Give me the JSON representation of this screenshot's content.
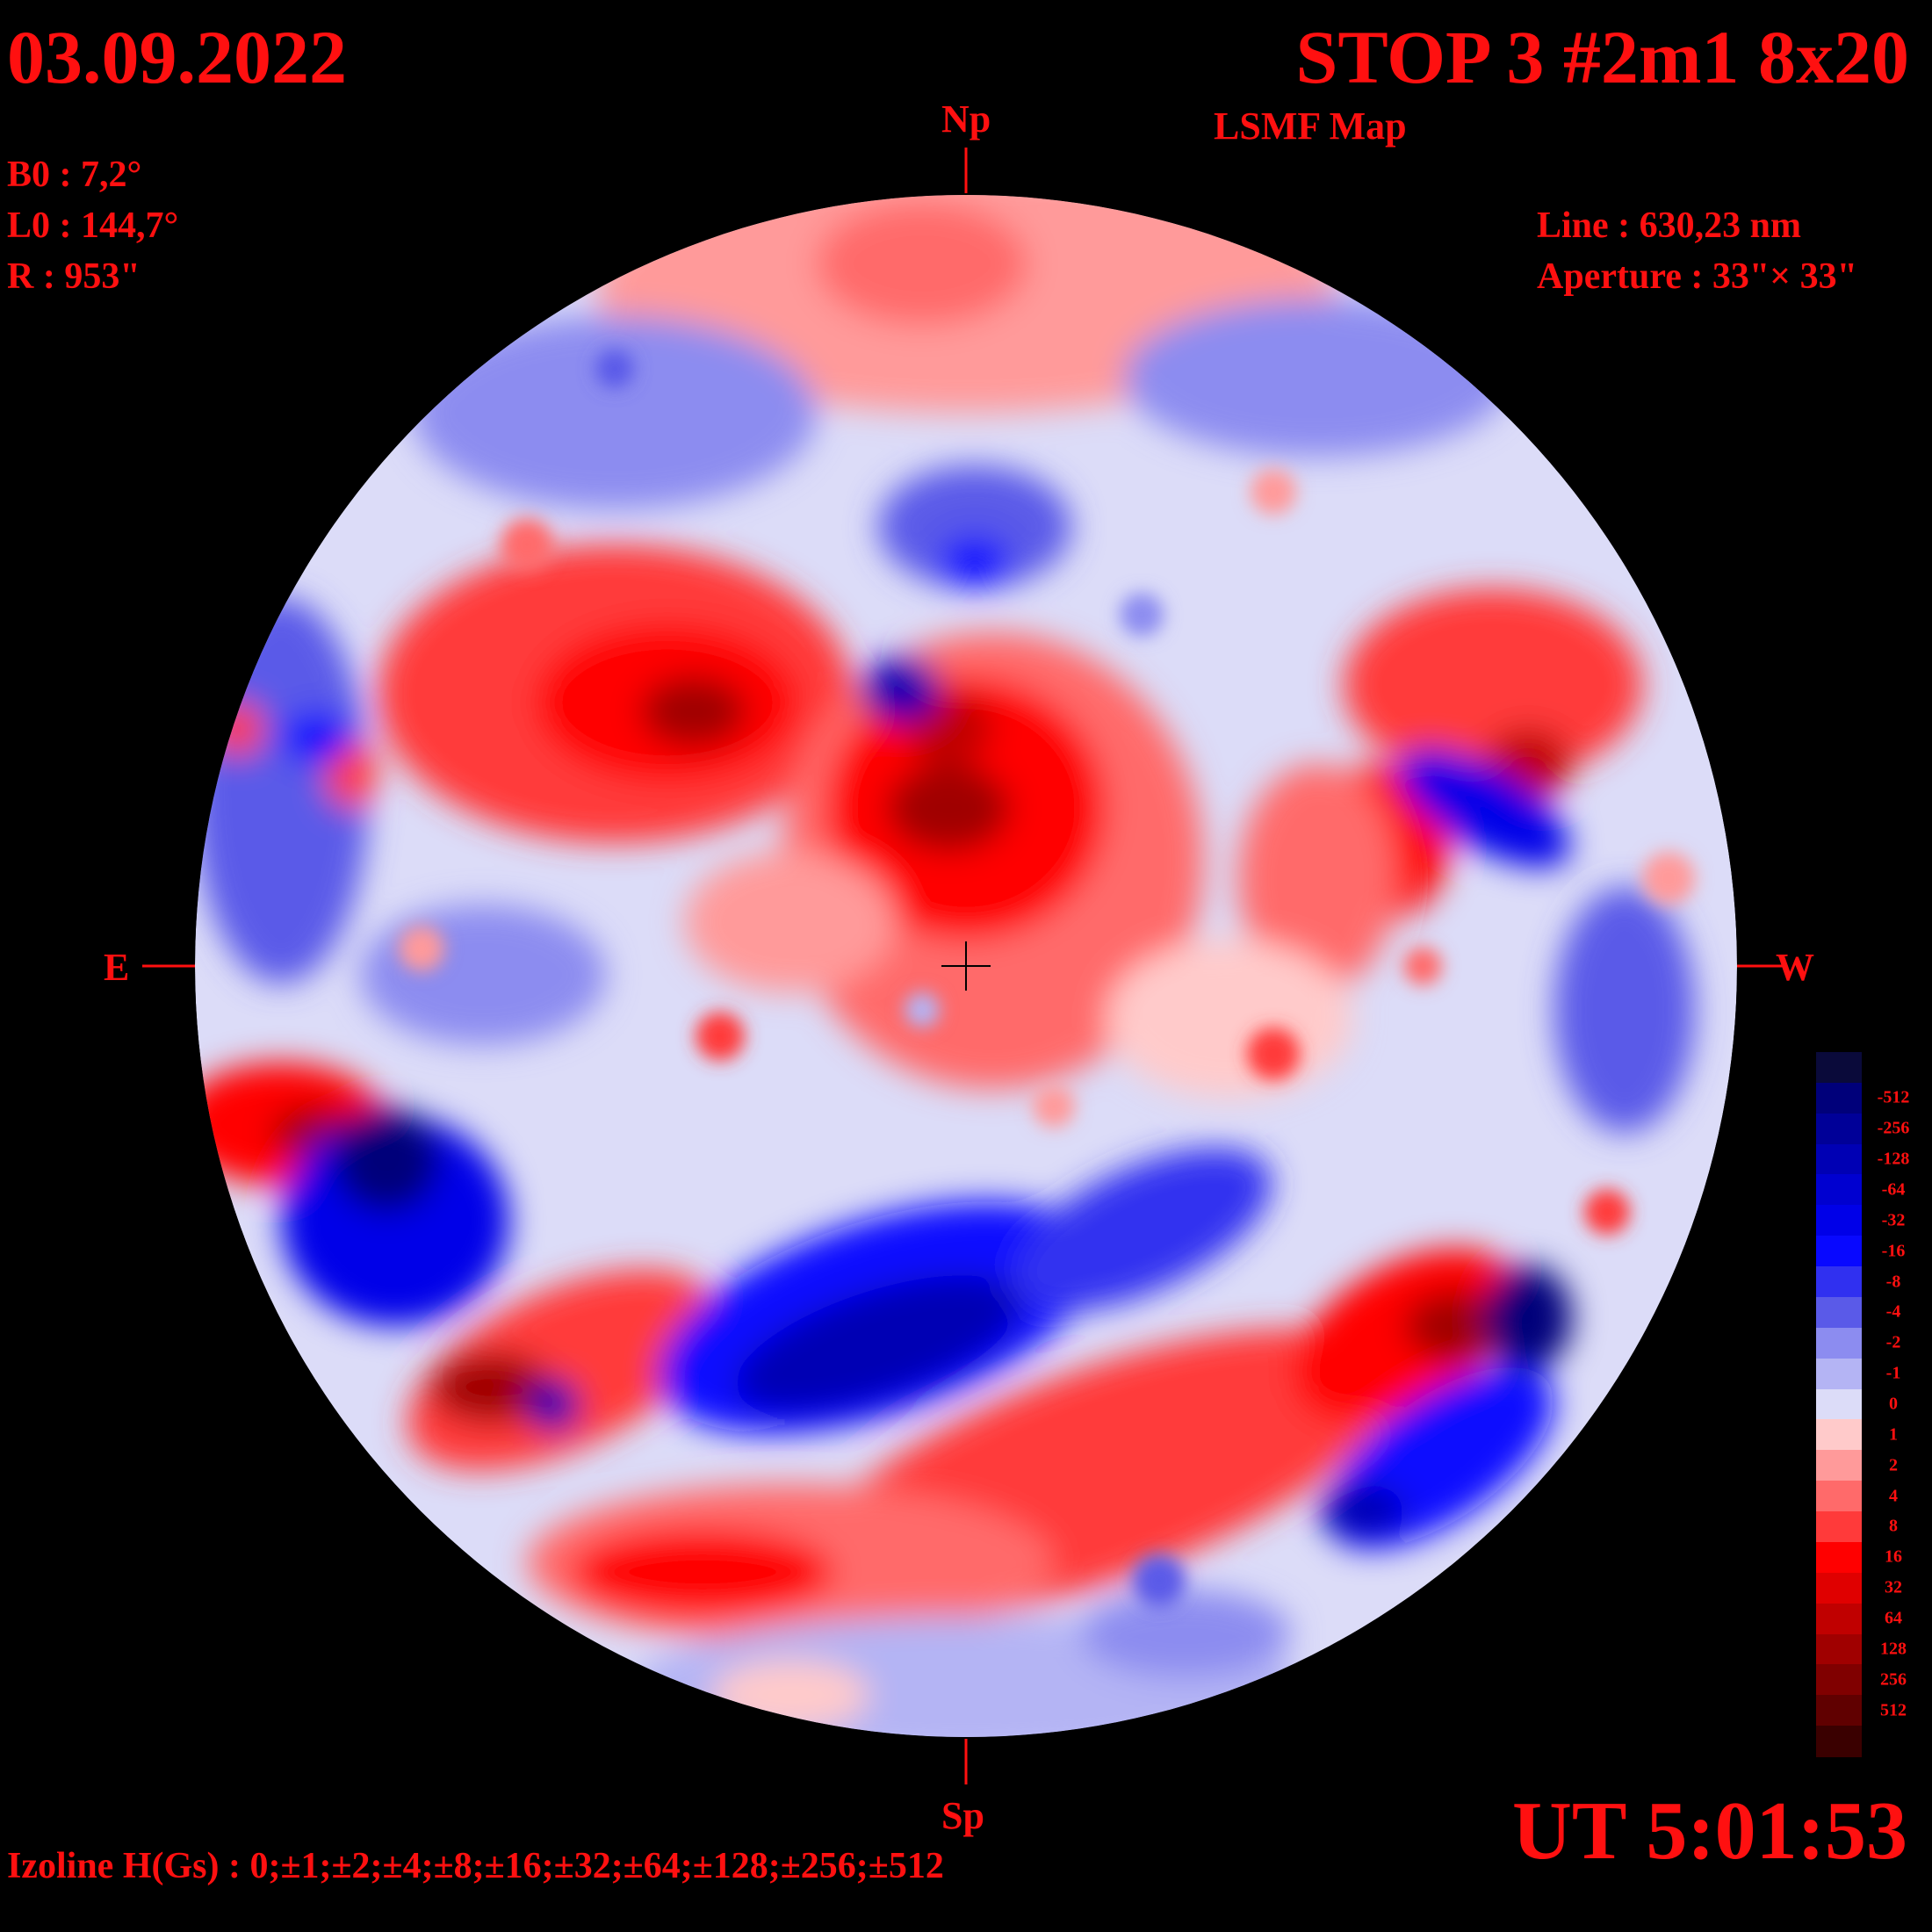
{
  "header": {
    "date": "03.09.2022",
    "title": "STOP 3 #2m1 8x20",
    "subtitle": "LSMF  Map"
  },
  "params": {
    "b0": "B0 : 7,2°",
    "l0": "L0 : 144,7°",
    "r": "R  : 953\""
  },
  "observation": {
    "line": "Line :  630,23 nm",
    "aperture": "Aperture : 33\"× 33\""
  },
  "compass": {
    "north": "Np",
    "south": "Sp",
    "east": "E",
    "west": "W"
  },
  "time": "UT 5:01:53",
  "izoline": "Izoline H(Gs) : 0;±1;±2;±4;±8;±16;±32;±64;±128;±256;±512",
  "legend": {
    "levels": [
      {
        "label": "",
        "color": "#0a0a3a"
      },
      {
        "label": "-512",
        "color": "#00007a"
      },
      {
        "label": "-256",
        "color": "#000098"
      },
      {
        "label": "-128",
        "color": "#0000b4"
      },
      {
        "label": "-64",
        "color": "#0000d0"
      },
      {
        "label": "-32",
        "color": "#0000e8"
      },
      {
        "label": "-16",
        "color": "#0808ff"
      },
      {
        "label": "-8",
        "color": "#3030f0"
      },
      {
        "label": "-4",
        "color": "#5a5ae8"
      },
      {
        "label": "-2",
        "color": "#8c8cf0"
      },
      {
        "label": "-1",
        "color": "#b4b4f4"
      },
      {
        "label": "0",
        "color": "#dcdcf8"
      },
      {
        "label": "1",
        "color": "#ffcaca"
      },
      {
        "label": "2",
        "color": "#ff9a9a"
      },
      {
        "label": "4",
        "color": "#ff6a6a"
      },
      {
        "label": "8",
        "color": "#ff3a3a"
      },
      {
        "label": "16",
        "color": "#ff0000"
      },
      {
        "label": "32",
        "color": "#e00000"
      },
      {
        "label": "64",
        "color": "#c00000"
      },
      {
        "label": "128",
        "color": "#a00000"
      },
      {
        "label": "256",
        "color": "#800000"
      },
      {
        "label": "512",
        "color": "#600000"
      },
      {
        "label": "",
        "color": "#3a0000"
      }
    ]
  },
  "colors": {
    "text": "#ff1010",
    "background": "#000000",
    "neutral": "#ffffff"
  }
}
